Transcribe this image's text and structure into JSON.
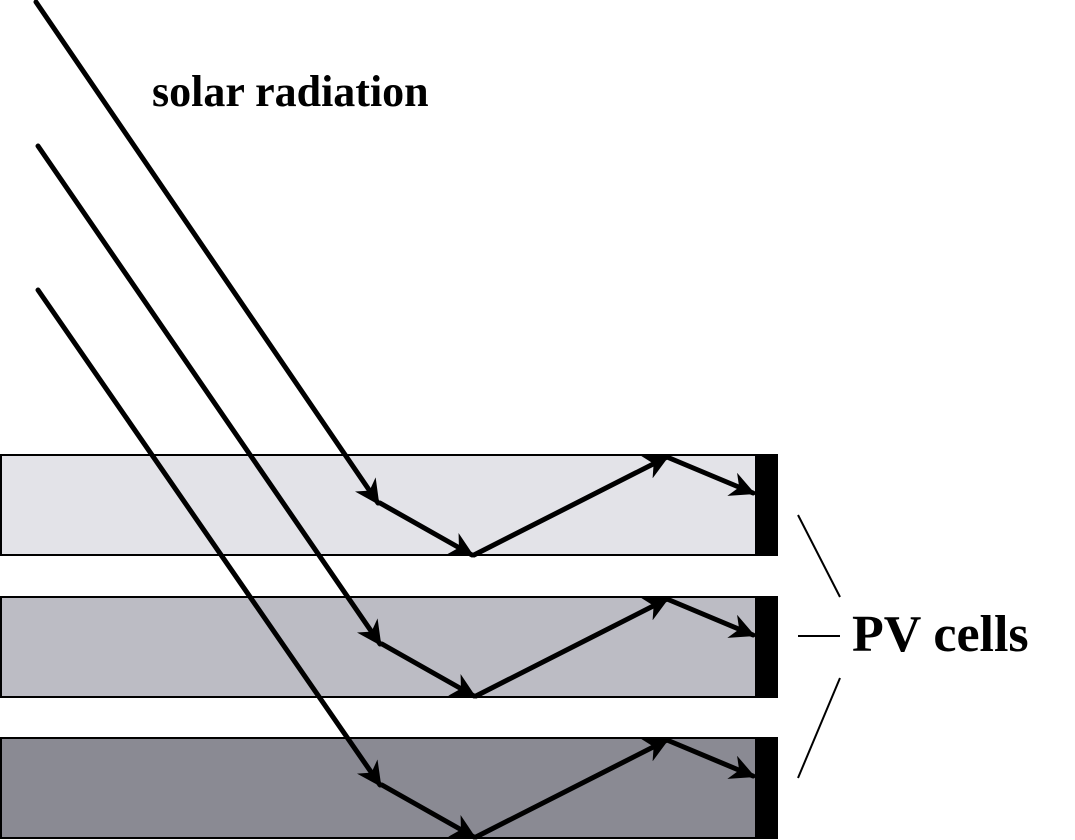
{
  "labels": {
    "radiation": "solar radiation",
    "cells": "PV cells"
  },
  "plates": [
    {
      "name": "top",
      "color": "#e3e3e8"
    },
    {
      "name": "middle",
      "color": "#bcbcc4"
    },
    {
      "name": "bottom",
      "color": "#8a8a93"
    }
  ],
  "colors": {
    "pv_cell": "#000000",
    "stroke": "#000000",
    "background": "#ffffff"
  }
}
